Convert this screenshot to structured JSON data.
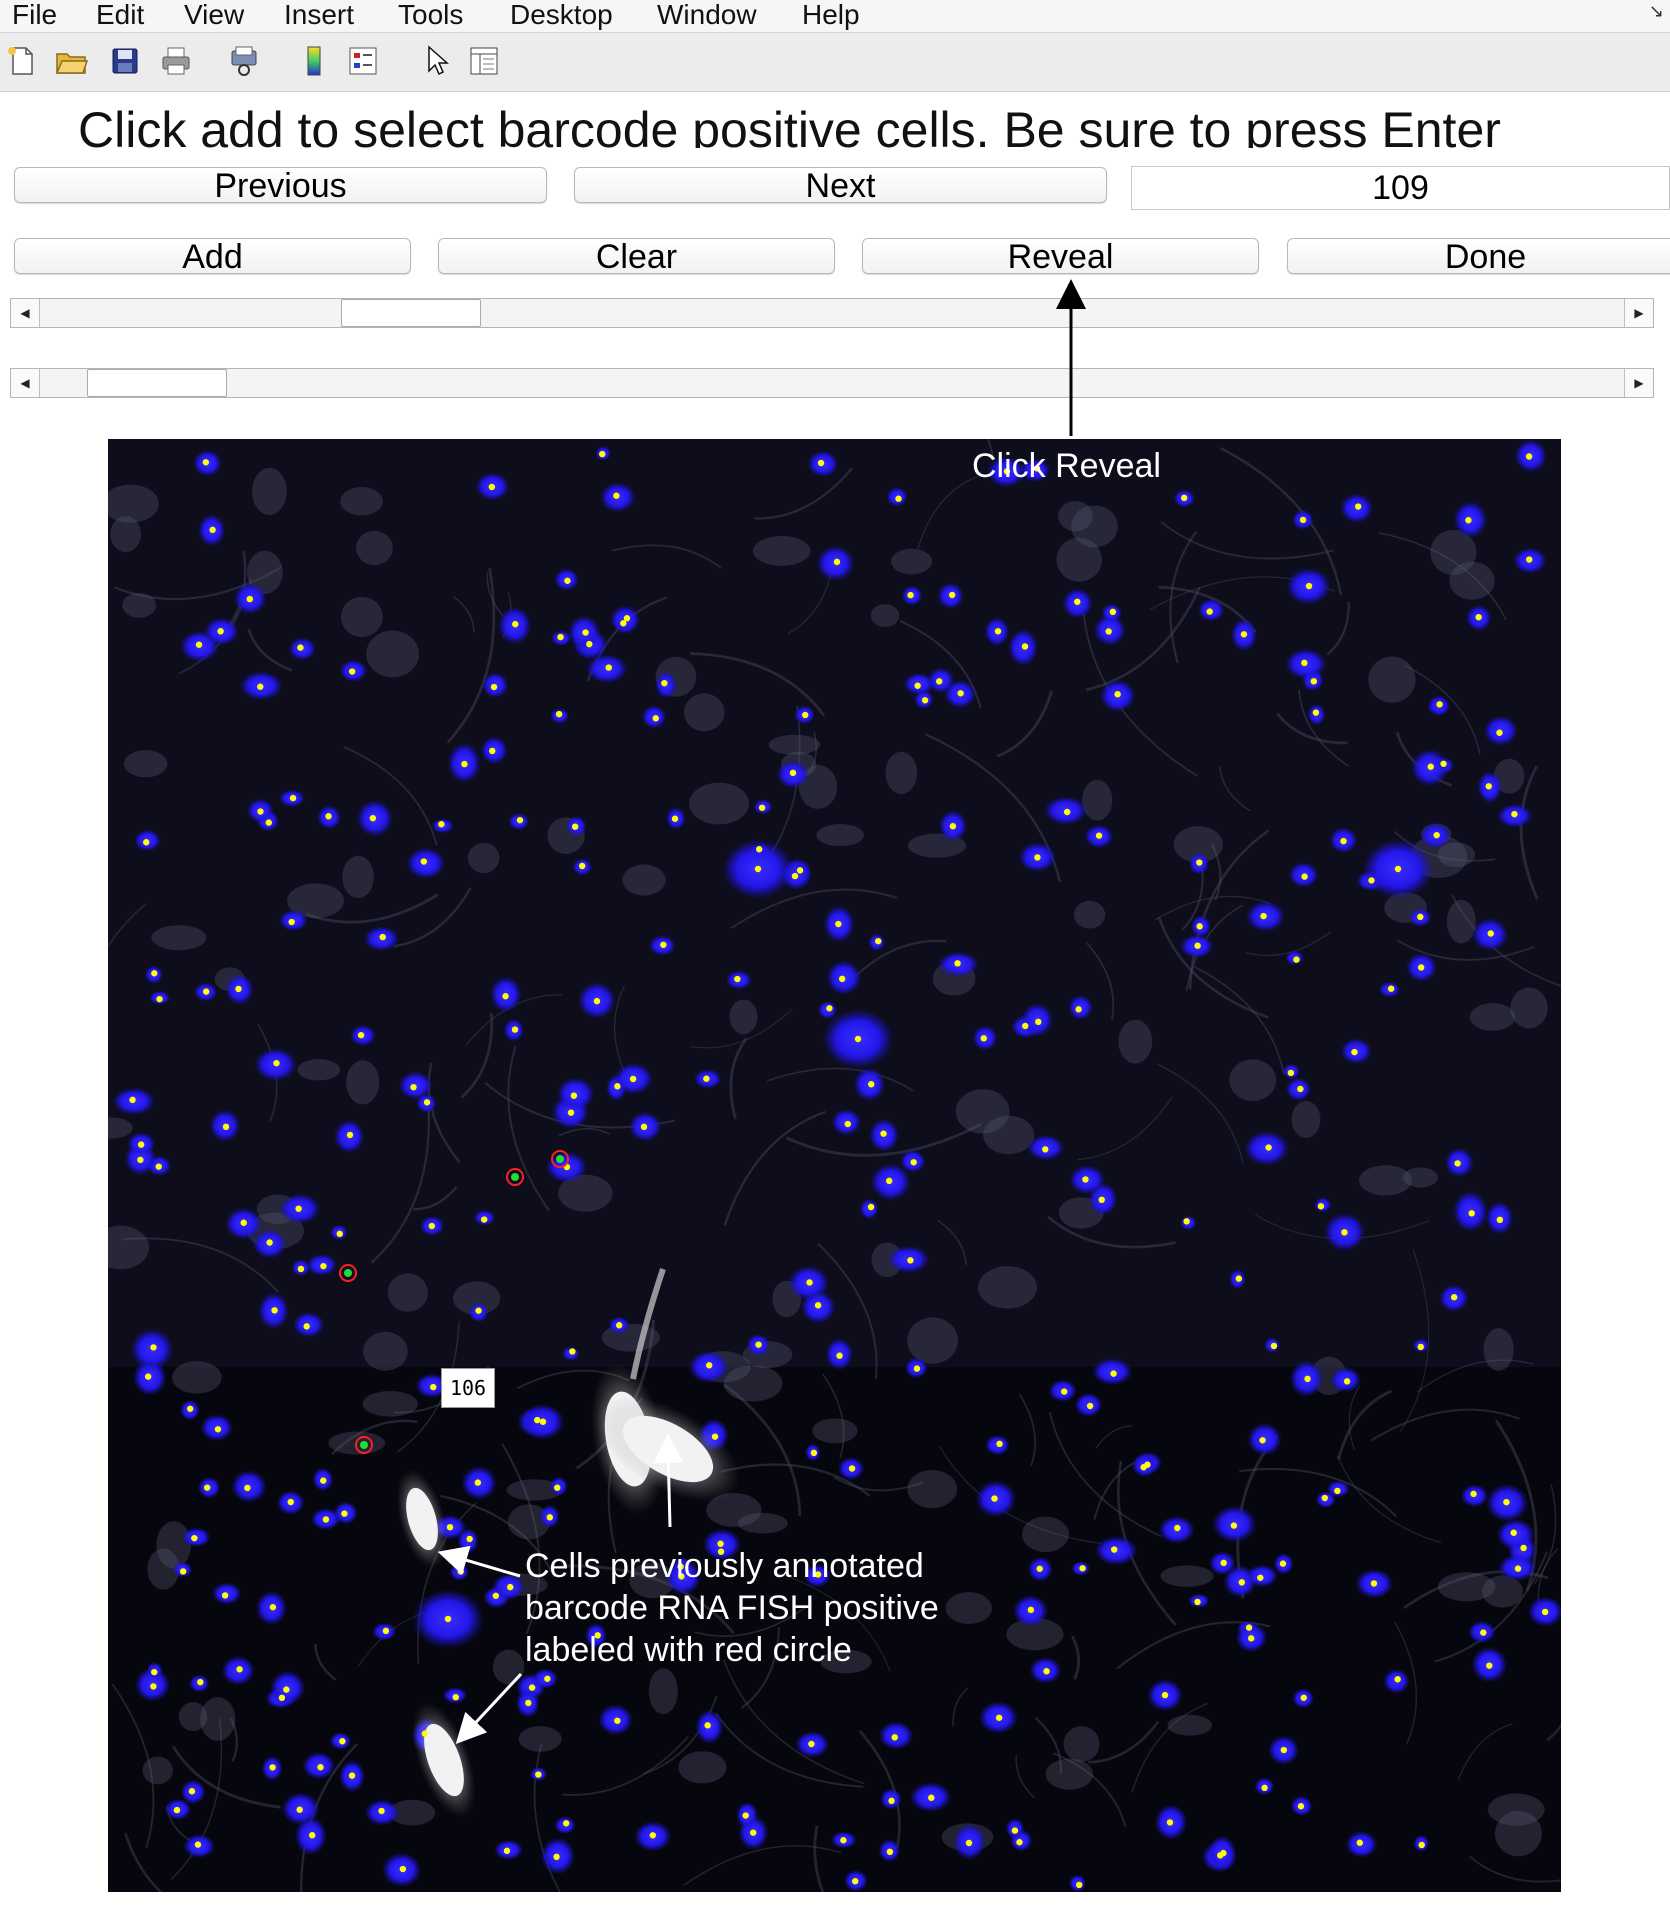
{
  "menu": {
    "items": [
      "File",
      "Edit",
      "View",
      "Insert",
      "Tools",
      "Desktop",
      "Window",
      "Help"
    ]
  },
  "toolbar": {
    "icons": [
      "new-file-icon",
      "open-folder-icon",
      "save-icon",
      "print-icon",
      "print-preview-icon",
      "colorbar-icon",
      "legend-icon",
      "pointer-icon",
      "property-panel-icon"
    ]
  },
  "panel": {
    "instruction": "Click add to select barcode positive cells. Be sure to press Enter",
    "previous_label": "Previous",
    "next_label": "Next",
    "index_value": "109",
    "add_label": "Add",
    "clear_label": "Clear",
    "reveal_label": "Reveal",
    "done_label": "Done",
    "slider_top_position": 0.19,
    "slider_bottom_position": 0.03
  },
  "image": {
    "frame_label": "106",
    "annotation_reveal": "Click Reveal",
    "annotation_cells": [
      "Cells previously annotated",
      "barcode RNA FISH positive",
      "labeled with red circle"
    ]
  },
  "colors": {
    "nucleus_blue": "#2b1cff",
    "marker_yellow": "#ffff00",
    "annotation_red": "#ff2020",
    "annotation_green": "#22dd33",
    "background": "#0a0a15"
  }
}
